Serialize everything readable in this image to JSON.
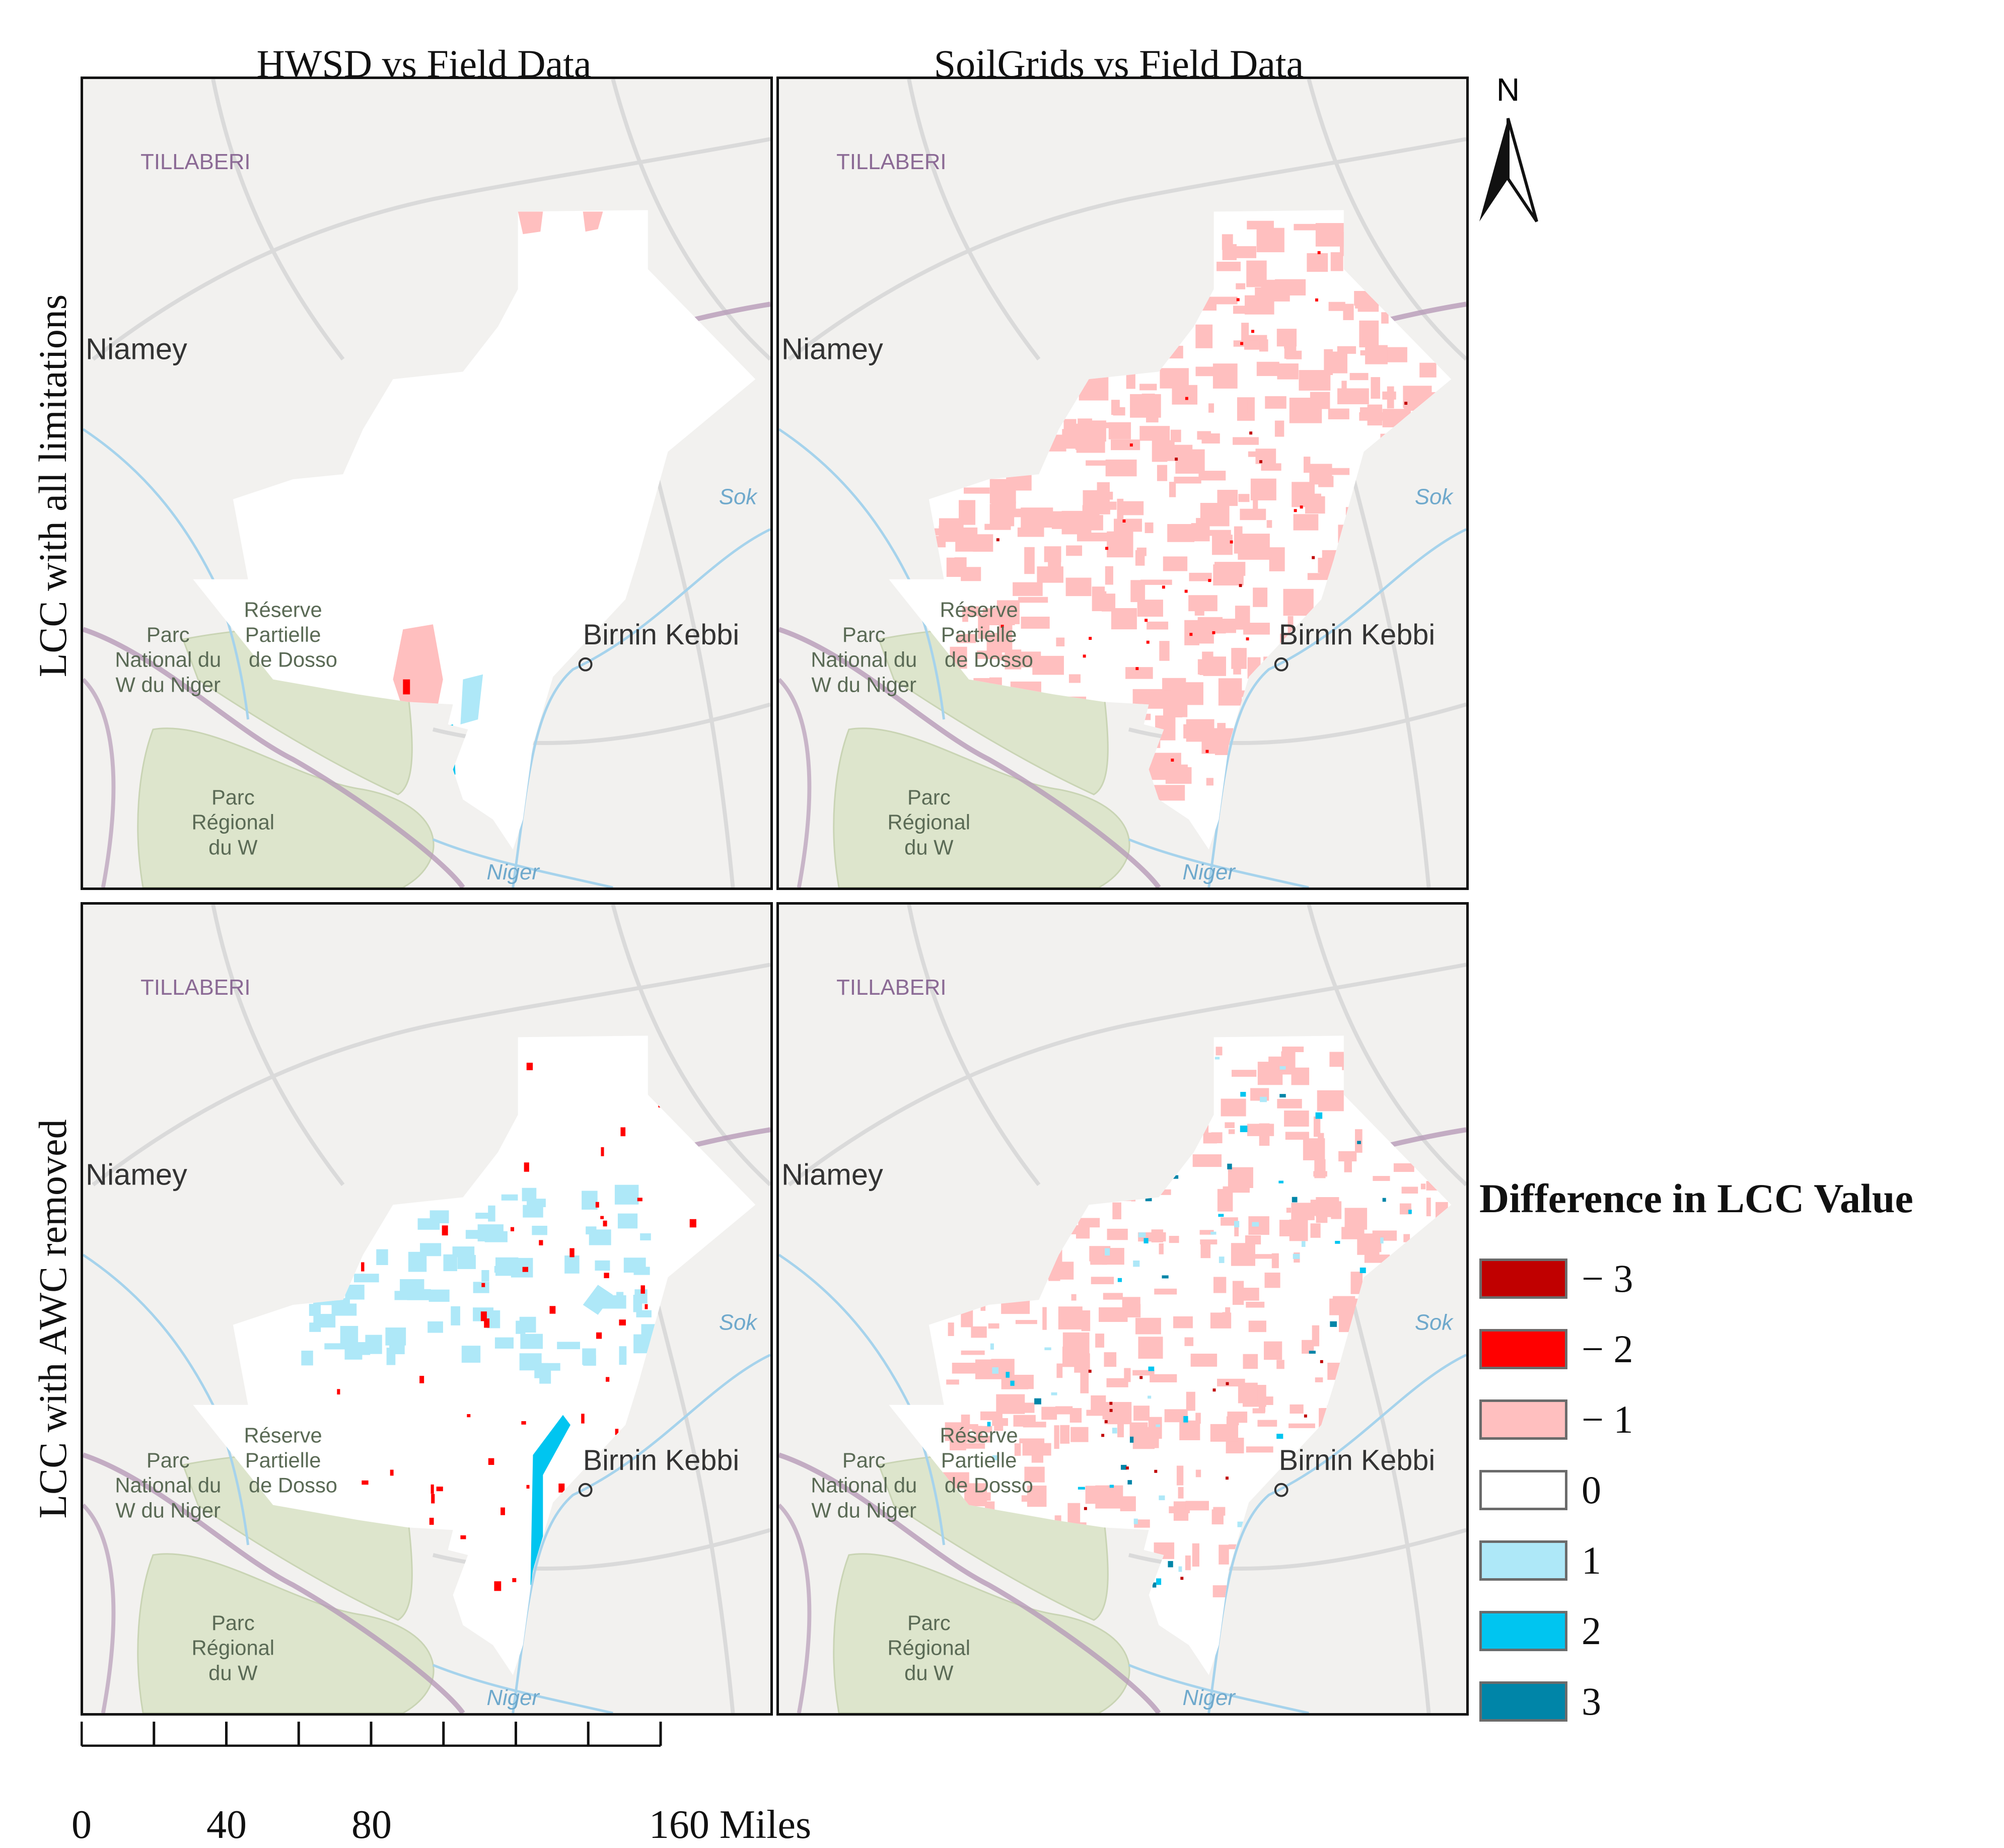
{
  "columns": [
    {
      "title": "HWSD vs Field Data"
    },
    {
      "title": "SoilGrids vs Field Data"
    }
  ],
  "rows": [
    {
      "title": "LCC with all limitations"
    },
    {
      "title": "LCC with AWC removed"
    }
  ],
  "basemap_labels": {
    "region": "TILLABERI",
    "city": "Niamey",
    "city2": "Birnin Kebbi",
    "river1": "Sok",
    "river2": "Niger",
    "park1_line1": "Parc",
    "park1_line2": "National du",
    "park1_line3": "W du Niger",
    "park2_line1": "Réserve",
    "park2_line2": "Partielle",
    "park2_line3": "de Dosso",
    "park3_line1": "Parc",
    "park3_line2": "Régional",
    "park3_line3": "du W"
  },
  "north_arrow": {
    "label": "N"
  },
  "legend": {
    "title": "Difference in LCC Value",
    "items": [
      {
        "label": "− 3",
        "color": "#c00000"
      },
      {
        "label": "− 2",
        "color": "#ff0000"
      },
      {
        "label": "− 1",
        "color": "#ffbfbf"
      },
      {
        "label": "0",
        "color": "#ffffff"
      },
      {
        "label": "1",
        "color": "#aee8f8"
      },
      {
        "label": "2",
        "color": "#00c5f0"
      },
      {
        "label": "3",
        "color": "#0085a8"
      }
    ]
  },
  "scale_bar": {
    "ticks": [
      "0",
      "40",
      "80",
      "160 Miles"
    ]
  },
  "colors": {
    "basemap": "#f2f1ef",
    "park": "#dde5cc",
    "boundary": "#b79bb8",
    "river": "#a6d3ec",
    "road": "#dadada"
  }
}
